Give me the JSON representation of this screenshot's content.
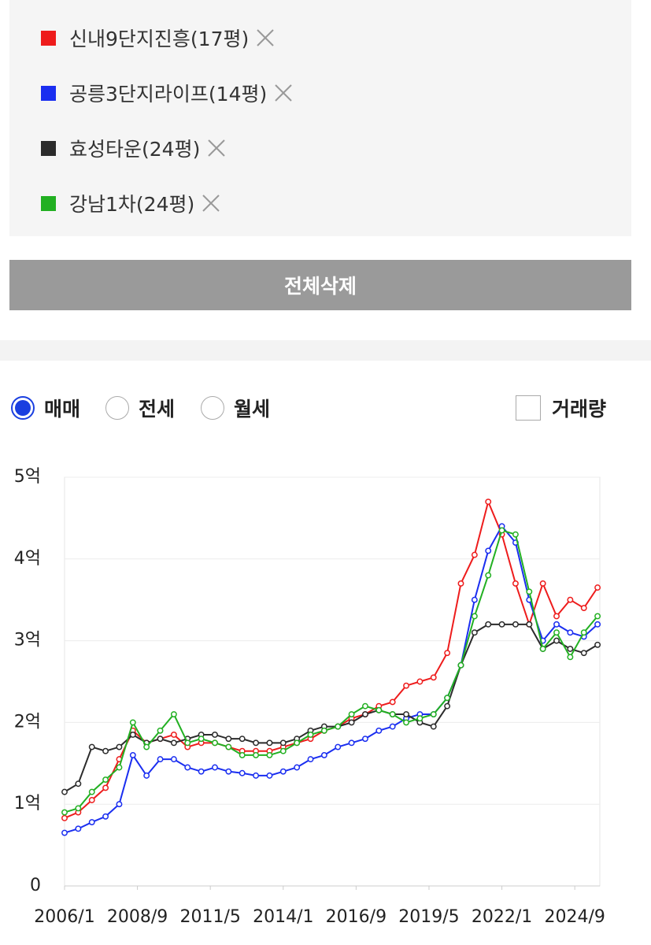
{
  "delete_all_label": "전체삭제",
  "radio_options": [
    "매매",
    "전세",
    "월세"
  ],
  "selected": 0,
  "volume_label": "거래량",
  "volume_checked": false,
  "chart_data": {
    "type": "line",
    "x": [
      "2006/1",
      "2006/7",
      "2007/1",
      "2007/7",
      "2008/1",
      "2008/7",
      "2009/1",
      "2009/7",
      "2010/1",
      "2010/7",
      "2011/1",
      "2011/7",
      "2012/1",
      "2012/7",
      "2013/1",
      "2013/7",
      "2014/1",
      "2014/7",
      "2015/1",
      "2015/7",
      "2016/1",
      "2016/7",
      "2017/1",
      "2017/7",
      "2018/1",
      "2018/7",
      "2019/1",
      "2019/7",
      "2020/1",
      "2020/7",
      "2021/1",
      "2021/7",
      "2022/1",
      "2022/7",
      "2023/1",
      "2023/7",
      "2024/1",
      "2024/7",
      "2025/1",
      "2025/7"
    ],
    "series": [
      {
        "name": "신내9단지진흥(17평)",
        "color": "#ee1c1c",
        "values": [
          0.83,
          0.9,
          1.05,
          1.2,
          1.55,
          1.9,
          1.75,
          1.8,
          1.85,
          1.7,
          1.75,
          1.75,
          1.7,
          1.65,
          1.65,
          1.65,
          1.7,
          1.75,
          1.8,
          1.9,
          1.95,
          2.05,
          2.1,
          2.2,
          2.25,
          2.45,
          2.5,
          2.55,
          2.85,
          3.7,
          4.05,
          4.7,
          4.3,
          3.7,
          3.2,
          3.7,
          3.3,
          3.5,
          3.4,
          3.65
        ]
      },
      {
        "name": "공릉3단지라이프(14평)",
        "color": "#1a2ef0",
        "values": [
          0.65,
          0.7,
          0.78,
          0.85,
          1.0,
          1.6,
          1.35,
          1.55,
          1.55,
          1.45,
          1.4,
          1.45,
          1.4,
          1.38,
          1.35,
          1.35,
          1.4,
          1.45,
          1.55,
          1.6,
          1.7,
          1.75,
          1.8,
          1.9,
          1.95,
          2.05,
          2.1,
          2.1,
          2.3,
          2.7,
          3.5,
          4.1,
          4.4,
          4.2,
          3.5,
          3.0,
          3.2,
          3.1,
          3.05,
          3.2
        ]
      },
      {
        "name": "효성타운(24평)",
        "color": "#2b2b2b",
        "values": [
          1.15,
          1.25,
          1.7,
          1.65,
          1.7,
          1.85,
          1.75,
          1.8,
          1.75,
          1.8,
          1.85,
          1.85,
          1.8,
          1.8,
          1.75,
          1.75,
          1.75,
          1.8,
          1.9,
          1.95,
          1.95,
          2.0,
          2.1,
          2.15,
          2.1,
          2.1,
          2.0,
          1.95,
          2.2,
          2.7,
          3.1,
          3.2,
          3.2,
          3.2,
          3.2,
          2.9,
          3.0,
          2.9,
          2.85,
          2.95
        ]
      },
      {
        "name": "강남1차(24평)",
        "color": "#22b022",
        "values": [
          0.9,
          0.95,
          1.15,
          1.3,
          1.45,
          2.0,
          1.7,
          1.9,
          2.1,
          1.75,
          1.8,
          1.75,
          1.7,
          1.6,
          1.6,
          1.6,
          1.65,
          1.75,
          1.85,
          1.9,
          1.95,
          2.1,
          2.2,
          2.15,
          2.1,
          2.0,
          2.05,
          2.1,
          2.3,
          2.7,
          3.3,
          3.8,
          4.35,
          4.3,
          3.6,
          2.9,
          3.1,
          2.8,
          3.1,
          3.3
        ]
      }
    ],
    "xlim": [
      "2006/1",
      "2025/8"
    ],
    "xticks": [
      "2006/1",
      "2008/9",
      "2011/5",
      "2014/1",
      "2016/9",
      "2019/5",
      "2022/1",
      "2024/9"
    ],
    "ylim": [
      0,
      5
    ],
    "yticks": [
      0,
      {
        "value": 1,
        "label": "1억"
      },
      {
        "value": 2,
        "label": "2억"
      },
      {
        "value": 3,
        "label": "3억"
      },
      {
        "value": 4,
        "label": "4억"
      },
      {
        "value": 5,
        "label": "5억"
      }
    ],
    "grid": true
  }
}
